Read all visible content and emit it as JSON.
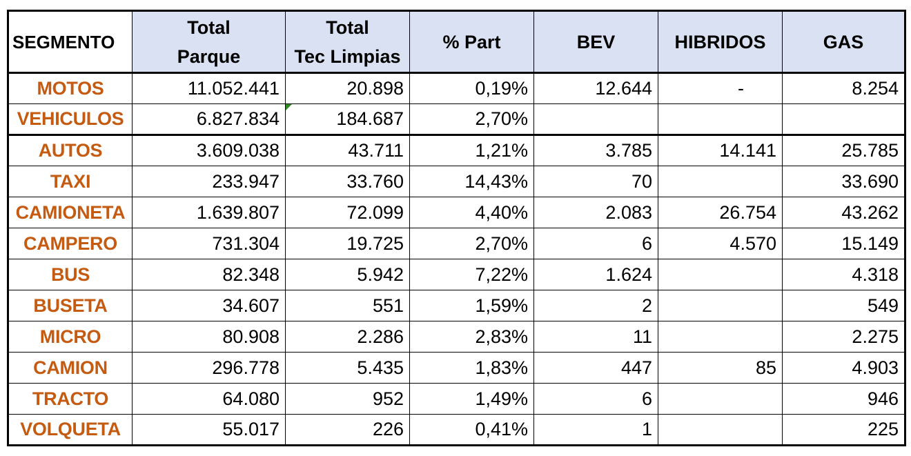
{
  "table": {
    "headers": [
      {
        "line1": "SEGMENTO",
        "line2": ""
      },
      {
        "line1": "Total",
        "line2": "Parque"
      },
      {
        "line1": "Total",
        "line2": "Tec Limpias"
      },
      {
        "line1": "% Part",
        "line2": ""
      },
      {
        "line1": "BEV",
        "line2": ""
      },
      {
        "line1": "HIBRIDOS",
        "line2": ""
      },
      {
        "line1": "GAS",
        "line2": ""
      }
    ],
    "rows": [
      {
        "seg": "MOTOS",
        "parque": "11.052.441",
        "limpias": "20.898",
        "part": "0,19%",
        "bev": "12.644",
        "hib": "-",
        "gas": "8.254"
      },
      {
        "seg": "VEHICULOS",
        "parque": "6.827.834",
        "limpias": "184.687",
        "part": "2,70%",
        "bev": "",
        "hib": "",
        "gas": ""
      },
      {
        "seg": "AUTOS",
        "parque": "3.609.038",
        "limpias": "43.711",
        "part": "1,21%",
        "bev": "3.785",
        "hib": "14.141",
        "gas": "25.785"
      },
      {
        "seg": "TAXI",
        "parque": "233.947",
        "limpias": "33.760",
        "part": "14,43%",
        "bev": "70",
        "hib": "",
        "gas": "33.690"
      },
      {
        "seg": "CAMIONETA",
        "parque": "1.639.807",
        "limpias": "72.099",
        "part": "4,40%",
        "bev": "2.083",
        "hib": "26.754",
        "gas": "43.262"
      },
      {
        "seg": "CAMPERO",
        "parque": "731.304",
        "limpias": "19.725",
        "part": "2,70%",
        "bev": "6",
        "hib": "4.570",
        "gas": "15.149"
      },
      {
        "seg": "BUS",
        "parque": "82.348",
        "limpias": "5.942",
        "part": "7,22%",
        "bev": "1.624",
        "hib": "",
        "gas": "4.318"
      },
      {
        "seg": "BUSETA",
        "parque": "34.607",
        "limpias": "551",
        "part": "1,59%",
        "bev": "2",
        "hib": "",
        "gas": "549"
      },
      {
        "seg": "MICRO",
        "parque": "80.908",
        "limpias": "2.286",
        "part": "2,83%",
        "bev": "11",
        "hib": "",
        "gas": "2.275"
      },
      {
        "seg": "CAMION",
        "parque": "296.778",
        "limpias": "5.435",
        "part": "1,83%",
        "bev": "447",
        "hib": "85",
        "gas": "4.903"
      },
      {
        "seg": "TRACTO",
        "parque": "64.080",
        "limpias": "952",
        "part": "1,49%",
        "bev": "6",
        "hib": "",
        "gas": "946"
      },
      {
        "seg": "VOLQUETA",
        "parque": "55.017",
        "limpias": "226",
        "part": "0,41%",
        "bev": "1",
        "hib": "",
        "gas": "225"
      }
    ]
  },
  "colors": {
    "segment_text": "#c55a11",
    "header_fill": "#d9e1f2",
    "comment_marker": "#2e8b22"
  }
}
